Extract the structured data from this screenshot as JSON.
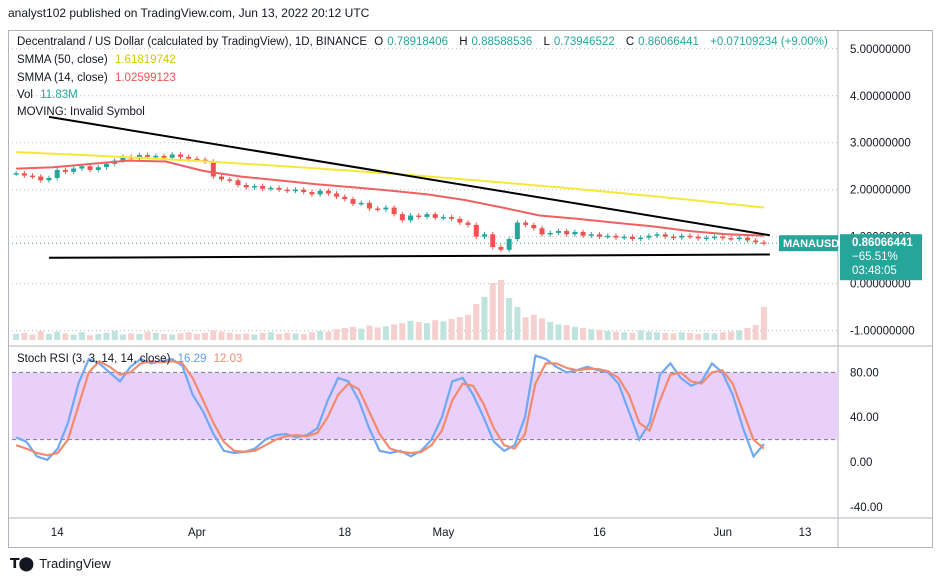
{
  "header": {
    "published": "analyst102 published on TradingView.com, Jun 13, 2022 20:12 UTC"
  },
  "legend": {
    "symbol": "Decentraland / US Dollar (calculated by TradingView), 1D, BINANCE",
    "open_label": "O",
    "open": "0.78918406",
    "high_label": "H",
    "high": "0.88588536",
    "low_label": "L",
    "low": "0.73946522",
    "close_label": "C",
    "close": "0.86066441",
    "change": "+0.07109234 (+9.00%)",
    "sma50_label": "SMMA (50, close)",
    "sma50": "1.61819742",
    "sma14_label": "SMMA (14, close)",
    "sma14": "1.02599123",
    "vol_label": "Vol",
    "vol": "11.83M",
    "moving": "MOVING: Invalid Symbol",
    "stoch_label": "Stoch RSI (3, 3, 14, 14, close)",
    "stoch_k": "16.29",
    "stoch_d": "12.03"
  },
  "price_tag": {
    "symbol": "MANAUSD",
    "price": "0.86066441",
    "change_pct": "−65.51%",
    "countdown": "03:48:05"
  },
  "footer": {
    "brand": "TradingView"
  },
  "colors": {
    "up": "#26a69a",
    "down": "#ef5350",
    "sma50": "#f5e83b",
    "sma14": "#f06060",
    "stoch_k": "#6fa8f5",
    "stoch_d": "#f28b6d",
    "stoch_band": "#e9d0fb",
    "trendline": "#000000"
  },
  "chart_data": [
    {
      "type": "candlestick",
      "title": "Decentraland / US Dollar (calculated by TradingView), 1D, BINANCE",
      "y_ticks": [
        "5.00000000",
        "4.00000000",
        "3.00000000",
        "2.00000000",
        "1.00000000",
        "0.00000000",
        "-1.00000000"
      ],
      "y_tick_values": [
        5,
        4,
        3,
        2,
        1,
        0,
        -1
      ],
      "ylim": [
        -1.2,
        5.4
      ],
      "x_ticks": [
        "14",
        "Apr",
        "18",
        "May",
        "16",
        "Jun",
        "13"
      ],
      "x_tick_index": [
        5,
        22,
        40,
        52,
        71,
        86,
        96
      ],
      "candles_close": [
        2.35,
        2.3,
        2.28,
        2.2,
        2.25,
        2.42,
        2.38,
        2.45,
        2.5,
        2.42,
        2.48,
        2.55,
        2.62,
        2.7,
        2.66,
        2.74,
        2.7,
        2.72,
        2.68,
        2.75,
        2.7,
        2.66,
        2.64,
        2.6,
        2.28,
        2.22,
        2.2,
        2.1,
        2.05,
        2.08,
        2.02,
        2.04,
        2.0,
        1.98,
        2.0,
        1.95,
        1.9,
        1.98,
        1.92,
        1.85,
        1.8,
        1.7,
        1.72,
        1.6,
        1.58,
        1.62,
        1.48,
        1.35,
        1.45,
        1.42,
        1.48,
        1.4,
        1.42,
        1.38,
        1.3,
        1.25,
        1.0,
        1.05,
        0.78,
        0.72,
        0.95,
        1.3,
        1.25,
        1.18,
        1.05,
        1.08,
        1.12,
        1.05,
        1.1,
        1.02,
        1.05,
        1.0,
        1.02,
        0.98,
        1.0,
        0.95,
        0.98,
        1.02,
        1.05,
        1.0,
        0.98,
        1.02,
        1.0,
        0.96,
        0.98,
        1.0,
        0.97,
        0.95,
        0.98,
        0.92,
        0.88,
        0.86
      ],
      "sma50": {
        "name": "SMMA (50, close)",
        "start": 2.8,
        "end": 1.62
      },
      "sma14": {
        "name": "SMMA (14, close)",
        "values": [
          2.45,
          2.48,
          2.55,
          2.62,
          2.6,
          2.4,
          2.28,
          2.2,
          2.12,
          2.05,
          1.98,
          1.9,
          1.78,
          1.62,
          1.45,
          1.38,
          1.3,
          1.22,
          1.12,
          1.05,
          1.02
        ]
      },
      "trendline_upper": [
        3.55,
        1.03
      ],
      "trendline_lower": [
        0.55,
        0.62
      ],
      "last_price": 0.86066441
    },
    {
      "type": "volume",
      "vol_last": "11.83M",
      "values": [
        0.1,
        0.12,
        0.09,
        0.15,
        0.1,
        0.14,
        0.11,
        0.09,
        0.13,
        0.08,
        0.1,
        0.12,
        0.15,
        0.09,
        0.11,
        0.1,
        0.14,
        0.12,
        0.1,
        0.09,
        0.11,
        0.13,
        0.1,
        0.12,
        0.16,
        0.14,
        0.12,
        0.1,
        0.11,
        0.09,
        0.12,
        0.13,
        0.1,
        0.12,
        0.11,
        0.1,
        0.13,
        0.15,
        0.14,
        0.18,
        0.2,
        0.22,
        0.19,
        0.24,
        0.21,
        0.23,
        0.26,
        0.28,
        0.32,
        0.3,
        0.28,
        0.33,
        0.31,
        0.35,
        0.38,
        0.42,
        0.6,
        0.72,
        0.95,
        1.0,
        0.7,
        0.55,
        0.38,
        0.42,
        0.36,
        0.3,
        0.26,
        0.25,
        0.22,
        0.2,
        0.18,
        0.17,
        0.15,
        0.14,
        0.13,
        0.12,
        0.16,
        0.14,
        0.13,
        0.12,
        0.11,
        0.13,
        0.12,
        0.1,
        0.12,
        0.11,
        0.13,
        0.14,
        0.16,
        0.2,
        0.25,
        0.55
      ]
    },
    {
      "type": "line",
      "title": "Stoch RSI (3, 3, 14, 14, close)",
      "y_ticks": [
        "80.00",
        "40.00",
        "0.00",
        "-40.00"
      ],
      "y_tick_values": [
        80,
        40,
        0,
        -40
      ],
      "ylim": [
        -50,
        100
      ],
      "band": [
        20,
        80
      ],
      "series": [
        {
          "name": "K",
          "values": [
            22,
            18,
            5,
            2,
            12,
            35,
            70,
            92,
            88,
            80,
            72,
            85,
            92,
            88,
            90,
            92,
            86,
            60,
            45,
            25,
            10,
            8,
            9,
            12,
            20,
            24,
            25,
            22,
            24,
            30,
            55,
            75,
            72,
            55,
            30,
            10,
            8,
            10,
            5,
            10,
            20,
            40,
            72,
            75,
            60,
            40,
            18,
            10,
            15,
            40,
            95,
            92,
            85,
            80,
            82,
            85,
            82,
            80,
            70,
            45,
            20,
            35,
            78,
            88,
            75,
            68,
            72,
            88,
            80,
            60,
            30,
            5,
            16
          ]
        },
        {
          "name": "D",
          "values": [
            15,
            12,
            8,
            6,
            8,
            20,
            50,
            80,
            90,
            85,
            78,
            80,
            88,
            90,
            89,
            90,
            88,
            75,
            55,
            35,
            18,
            10,
            9,
            10,
            15,
            20,
            23,
            24,
            23,
            26,
            40,
            60,
            70,
            65,
            45,
            25,
            12,
            9,
            8,
            9,
            15,
            28,
            55,
            70,
            68,
            52,
            30,
            15,
            12,
            25,
            70,
            88,
            88,
            84,
            82,
            83,
            83,
            81,
            75,
            60,
            35,
            28,
            55,
            78,
            80,
            72,
            70,
            80,
            82,
            70,
            45,
            20,
            12
          ]
        }
      ],
      "k_last": "16.29",
      "d_last": "12.03"
    }
  ]
}
